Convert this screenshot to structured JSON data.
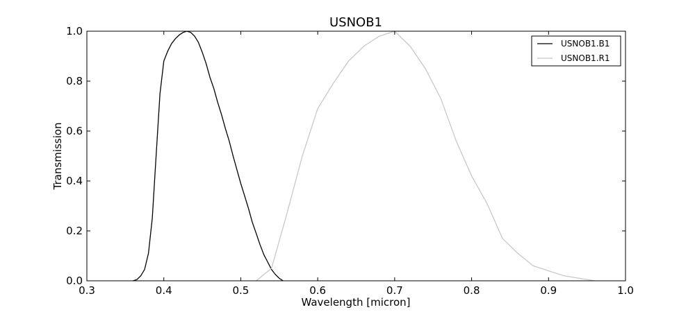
{
  "chart_data": {
    "type": "line",
    "title": "USNOB1",
    "xlabel": "Wavelength [micron]",
    "ylabel": "Transmission",
    "xlim": [
      0.3,
      1.0
    ],
    "ylim": [
      0.0,
      1.0
    ],
    "xticks": [
      "0.3",
      "0.4",
      "0.5",
      "0.6",
      "0.7",
      "0.8",
      "0.9",
      "1.0"
    ],
    "yticks": [
      "0.0",
      "0.2",
      "0.4",
      "0.6",
      "0.8",
      "1.0"
    ],
    "grid": false,
    "legend_position": "top-right",
    "series": [
      {
        "name": "USNOB1.B1",
        "color": "#000000",
        "x": [
          0.36,
          0.365,
          0.37,
          0.375,
          0.38,
          0.385,
          0.39,
          0.395,
          0.4,
          0.405,
          0.41,
          0.415,
          0.42,
          0.425,
          0.43,
          0.435,
          0.44,
          0.445,
          0.45,
          0.455,
          0.46,
          0.465,
          0.47,
          0.475,
          0.48,
          0.485,
          0.49,
          0.495,
          0.5,
          0.505,
          0.51,
          0.515,
          0.52,
          0.525,
          0.53,
          0.535,
          0.54,
          0.545,
          0.55,
          0.555
        ],
        "y": [
          0.0,
          0.005,
          0.02,
          0.045,
          0.11,
          0.25,
          0.5,
          0.75,
          0.88,
          0.92,
          0.95,
          0.97,
          0.985,
          0.995,
          1.0,
          0.995,
          0.98,
          0.955,
          0.915,
          0.87,
          0.815,
          0.77,
          0.715,
          0.665,
          0.61,
          0.56,
          0.5,
          0.445,
          0.39,
          0.34,
          0.29,
          0.235,
          0.19,
          0.145,
          0.105,
          0.075,
          0.045,
          0.025,
          0.01,
          0.0
        ]
      },
      {
        "name": "USNOB1.R1",
        "color": "#c8c8c8",
        "x": [
          0.52,
          0.54,
          0.56,
          0.58,
          0.6,
          0.62,
          0.64,
          0.66,
          0.68,
          0.7,
          0.72,
          0.74,
          0.76,
          0.78,
          0.8,
          0.82,
          0.84,
          0.86,
          0.88,
          0.9,
          0.92,
          0.94,
          0.96
        ],
        "y": [
          0.0,
          0.05,
          0.27,
          0.5,
          0.69,
          0.79,
          0.88,
          0.94,
          0.98,
          1.0,
          0.94,
          0.85,
          0.73,
          0.56,
          0.42,
          0.31,
          0.17,
          0.11,
          0.06,
          0.04,
          0.02,
          0.01,
          0.0
        ]
      }
    ]
  }
}
